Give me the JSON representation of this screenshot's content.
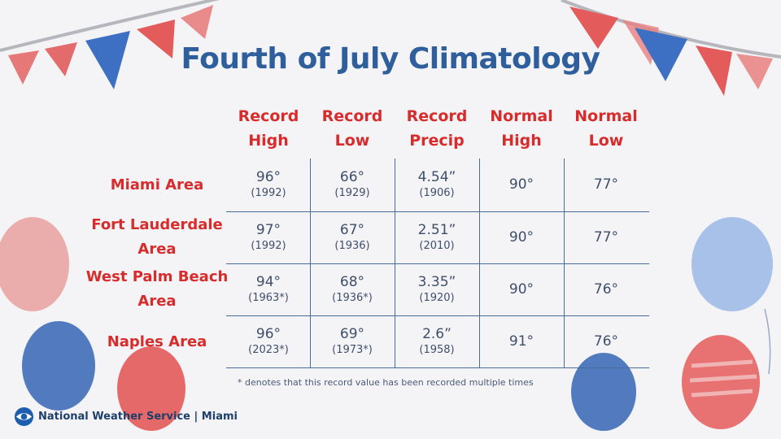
{
  "title": "Fourth of July Climatology",
  "columns": [
    {
      "line1": "Record",
      "line2": "High"
    },
    {
      "line1": "Record",
      "line2": "Low"
    },
    {
      "line1": "Record",
      "line2": "Precip"
    },
    {
      "line1": "Normal",
      "line2": "High"
    },
    {
      "line1": "Normal",
      "line2": "Low"
    }
  ],
  "rows": [
    {
      "region_line1": "Miami Area",
      "region_line2": "",
      "cells": [
        {
          "value": "96°",
          "year": "(1992)"
        },
        {
          "value": "66°",
          "year": "(1929)"
        },
        {
          "value": "4.54”",
          "year": "(1906)"
        },
        {
          "value": "90°",
          "year": ""
        },
        {
          "value": "77°",
          "year": ""
        }
      ]
    },
    {
      "region_line1": "Fort Lauderdale",
      "region_line2": "Area",
      "cells": [
        {
          "value": "97°",
          "year": "(1992)"
        },
        {
          "value": "67°",
          "year": "(1936)"
        },
        {
          "value": "2.51”",
          "year": "(2010)"
        },
        {
          "value": "90°",
          "year": ""
        },
        {
          "value": "77°",
          "year": ""
        }
      ]
    },
    {
      "region_line1": "West Palm Beach",
      "region_line2": "Area",
      "cells": [
        {
          "value": "94°",
          "year": "(1963*)"
        },
        {
          "value": "68°",
          "year": "(1936*)"
        },
        {
          "value": "3.35”",
          "year": "(1920)"
        },
        {
          "value": "90°",
          "year": ""
        },
        {
          "value": "76°",
          "year": ""
        }
      ]
    },
    {
      "region_line1": "Naples Area",
      "region_line2": "",
      "cells": [
        {
          "value": "96°",
          "year": "(2023*)"
        },
        {
          "value": "69°",
          "year": "(1973*)"
        },
        {
          "value": "2.6”",
          "year": "(1958)"
        },
        {
          "value": "91°",
          "year": ""
        },
        {
          "value": "76°",
          "year": ""
        }
      ]
    }
  ],
  "footnote": "* denotes that this record value has been recorded multiple times",
  "brand": "National Weather Service | Miami",
  "colors": {
    "accent_red": "#d82b2b",
    "title_blue": "#2f5e9c",
    "text": "#3f4f6b",
    "grid": "#4a6a99",
    "background": "#f4f4f6"
  },
  "icons": [
    "bunting-decoration",
    "balloon-decoration",
    "noaa-logo-icon"
  ]
}
